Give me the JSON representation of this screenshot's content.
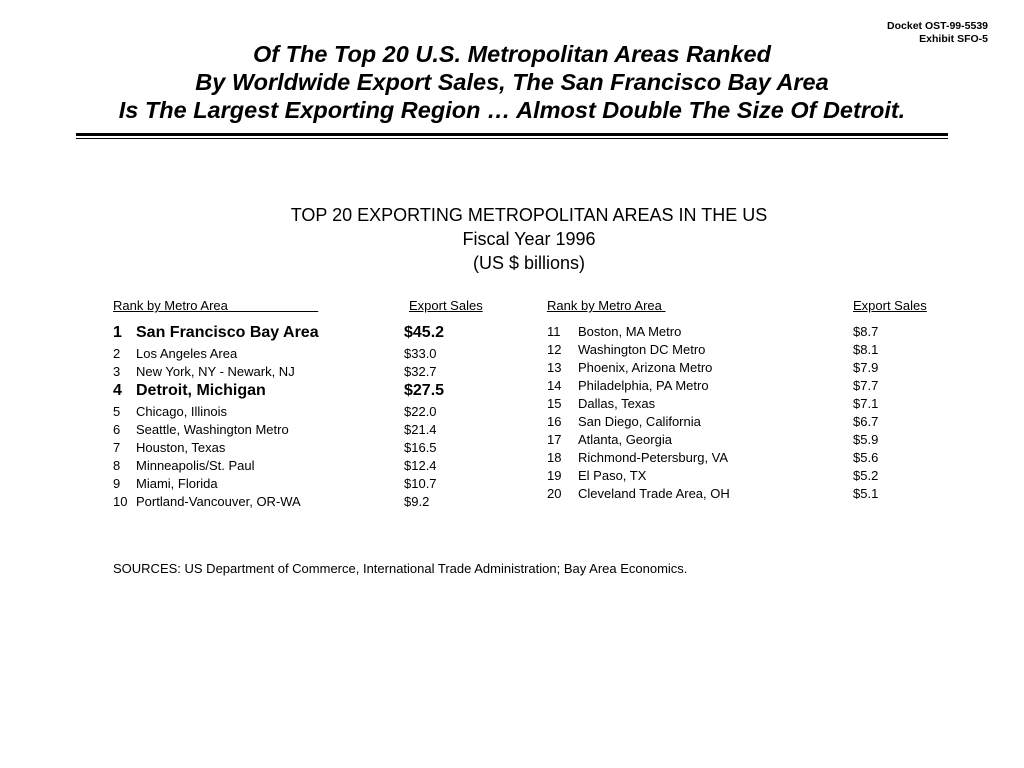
{
  "header": {
    "docket": "Docket OST-99-5539",
    "exhibit": "Exhibit SFO-5"
  },
  "title": {
    "lines": [
      "Of The Top 20 U.S. Metropolitan Areas Ranked",
      "By Worldwide Export Sales, The San Francisco Bay Area",
      "Is The Largest Exporting Region … Almost Double The Size Of Detroit."
    ]
  },
  "table_title": {
    "line1": "TOP 20 EXPORTING METROPOLITAN AREAS IN THE US",
    "line2": "Fiscal Year 1996",
    "line3": "(US $ billions)"
  },
  "columns": {
    "left_rank": "Rank by Metro Area                         ",
    "left_sales": "Export Sales",
    "right_rank": "Rank by Metro Area",
    "right_sales": "Export Sales"
  },
  "left_rows": [
    {
      "rank": "1",
      "area": "San Francisco Bay Area",
      "sales": "$45.2",
      "bold": true
    },
    {
      "rank": "2",
      "area": "Los Angeles Area",
      "sales": "$33.0"
    },
    {
      "rank": "3",
      "area": "New York, NY - Newark, NJ",
      "sales": "$32.7"
    },
    {
      "rank": "4",
      "area": " Detroit, Michigan",
      "sales": "$27.5",
      "bold": true
    },
    {
      "rank": "5",
      "area": "Chicago, Illinois",
      "sales": "$22.0"
    },
    {
      "rank": "6",
      "area": "Seattle, Washington Metro",
      "sales": "$21.4"
    },
    {
      "rank": "7",
      "area": "Houston, Texas",
      "sales": "$16.5"
    },
    {
      "rank": "8",
      "area": "Minneapolis/St. Paul",
      "sales": "$12.4"
    },
    {
      "rank": "9",
      "area": "Miami, Florida",
      "sales": "$10.7"
    },
    {
      "rank": "10",
      "area": "Portland-Vancouver, OR-WA",
      "sales": "$9.2"
    }
  ],
  "right_rows": [
    {
      "rank": "11",
      "area": "Boston, MA Metro",
      "sales": "$8.7"
    },
    {
      "rank": "12",
      "area": "Washington DC Metro",
      "sales": "$8.1"
    },
    {
      "rank": "13",
      "area": "Phoenix, Arizona Metro",
      "sales": "$7.9"
    },
    {
      "rank": "14",
      "area": "Philadelphia, PA Metro",
      "sales": "$7.7"
    },
    {
      "rank": "15",
      "area": "Dallas, Texas",
      "sales": "$7.1"
    },
    {
      "rank": "16",
      "area": "San Diego, California",
      "sales": "$6.7"
    },
    {
      "rank": "17",
      "area": "Atlanta, Georgia",
      "sales": "$5.9"
    },
    {
      "rank": "18",
      "area": "Richmond-Petersburg, VA",
      "sales": "$5.6"
    },
    {
      "rank": "19",
      "area": "El Paso, TX",
      "sales": "$5.2"
    },
    {
      "rank": "20",
      "area": "Cleveland Trade Area, OH",
      "sales": "$5.1"
    }
  ],
  "sources": "SOURCES:  US Department of Commerce, International Trade Administration; Bay Area Economics."
}
